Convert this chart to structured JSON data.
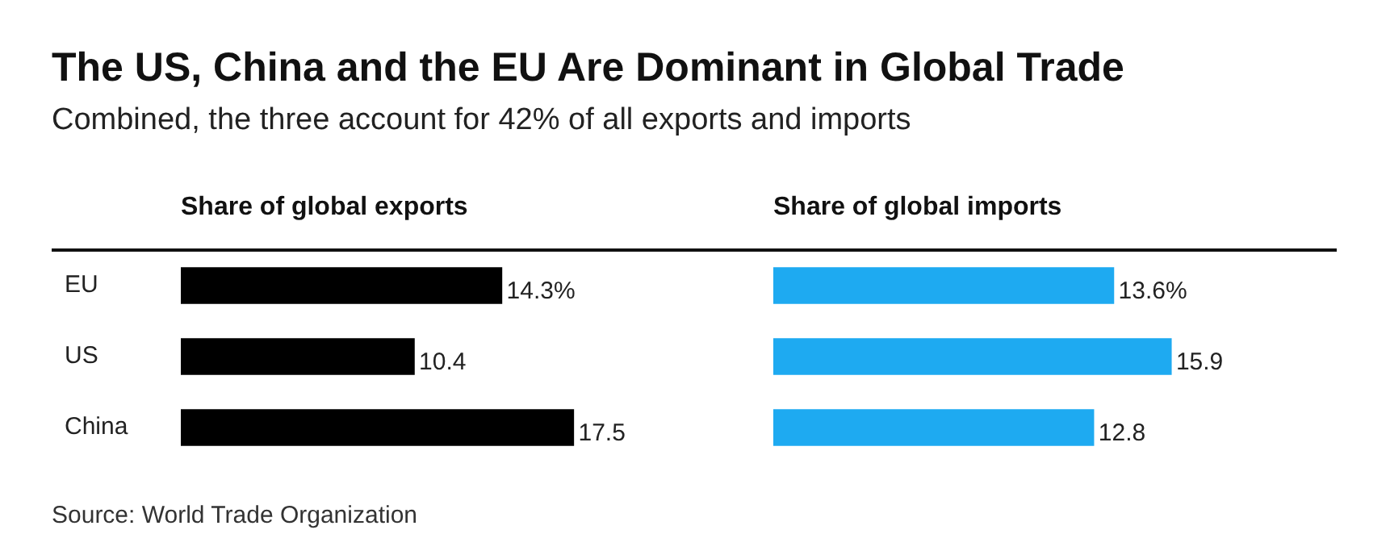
{
  "chart_data": [
    {
      "type": "bar",
      "orientation": "horizontal",
      "title": "The US, China and the EU Are Dominant in Global Trade",
      "subtitle": "Combined, the three account for 42% of all exports and imports",
      "categories": [
        "EU",
        "US",
        "China"
      ],
      "series": [
        {
          "name": "Share of global exports",
          "color": "#000000",
          "values": [
            14.3,
            10.4,
            17.5
          ],
          "value_labels": [
            "14.3%",
            "10.4",
            "17.5"
          ]
        }
      ],
      "tick_labels": "y"
    },
    {
      "type": "bar",
      "orientation": "horizontal",
      "categories": [
        null,
        null,
        null
      ],
      "series": [
        {
          "name": "Share of global imports",
          "color": "#1eaaf1",
          "values": [
            13.6,
            15.9,
            12.8
          ],
          "value_labels": [
            "13.6%",
            "15.9",
            "12.8"
          ]
        }
      ],
      "tick_labels": false,
      "annotations": [
        "Source: World Trade Organization"
      ]
    }
  ]
}
